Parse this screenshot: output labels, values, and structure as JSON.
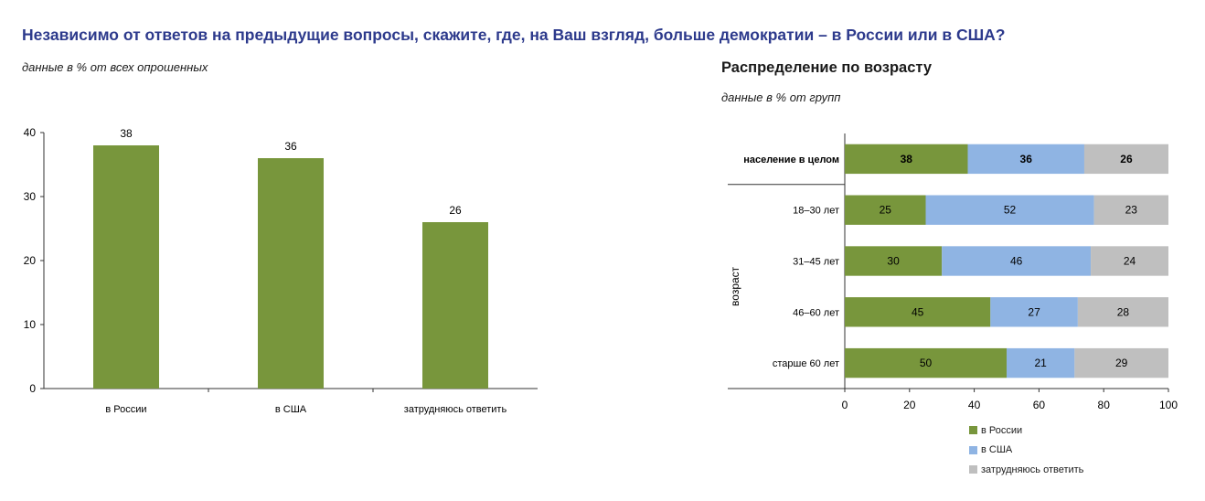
{
  "header": {
    "headline": "Независимо от ответов на предыдущие вопросы, скажите, где, на Ваш взгляд, больше демократии – в России или в США?",
    "left_note": "данные в % от всех опрошенных",
    "right_title": "Распределение по возрасту",
    "right_note": "данные в % от групп"
  },
  "colors": {
    "russia": "#78963c",
    "usa": "#8fb4e3",
    "undecided": "#bfbfbf"
  },
  "chart_data": [
    {
      "type": "bar",
      "title": "",
      "categories": [
        "в России",
        "в США",
        "затрудняюсь ответить"
      ],
      "values": [
        38,
        36,
        26
      ],
      "ylim": [
        0,
        40
      ],
      "yticks": [
        0,
        10,
        20,
        30,
        40
      ],
      "grid": false,
      "legend": "none"
    },
    {
      "type": "bar",
      "orientation": "horizontal",
      "stacked": true,
      "title": "Распределение по возрасту",
      "ylabel": "возраст",
      "categories": [
        "население в целом",
        "18–30 лет",
        "31–45 лет",
        "46–60 лет",
        "старше 60 лет"
      ],
      "series": [
        {
          "name": "в России",
          "values": [
            38,
            25,
            30,
            45,
            50
          ]
        },
        {
          "name": "в США",
          "values": [
            36,
            52,
            46,
            27,
            21
          ]
        },
        {
          "name": "затрудняюсь ответить",
          "values": [
            26,
            23,
            24,
            28,
            29
          ]
        }
      ],
      "xlim": [
        0,
        100
      ],
      "xticks": [
        0,
        20,
        40,
        60,
        80,
        100
      ],
      "grid": false,
      "legend": "bottom-right"
    }
  ]
}
